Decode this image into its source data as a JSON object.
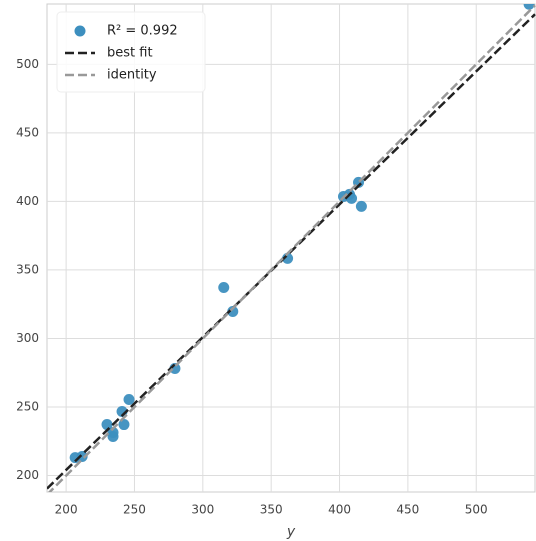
{
  "chart_data": {
    "type": "scatter",
    "xlabel": "y",
    "xlim": [
      186,
      543
    ],
    "ylim": [
      188,
      544
    ],
    "xticks": [
      200,
      250,
      300,
      350,
      400,
      450,
      500
    ],
    "yticks": [
      200,
      250,
      300,
      350,
      400,
      450,
      500
    ],
    "grid": true,
    "legend": "upper left",
    "series": [
      {
        "name": "R² = 0.992",
        "type": "scatter",
        "color": "#3d8fbf",
        "x": [
          206.6,
          211.7,
          229.9,
          234.3,
          234.3,
          240.9,
          242.3,
          246,
          279.6,
          315.3,
          321.9,
          362,
          402.9,
          407.3,
          408.8,
          413.9,
          416,
          538.7
        ],
        "y": [
          213.1,
          213.9,
          237.2,
          228.5,
          231.4,
          246.7,
          237.2,
          255.5,
          278.1,
          337.2,
          319.7,
          358.4,
          403.6,
          405.1,
          402.2,
          413.9,
          396.4,
          543.8
        ]
      },
      {
        "name": "best fit",
        "type": "line",
        "color": "#222222",
        "x": [
          186,
          543
        ],
        "y": [
          190.5,
          536.5
        ]
      },
      {
        "name": "identity",
        "type": "line",
        "color": "#999999",
        "x": [
          186,
          543
        ],
        "y": [
          186,
          543
        ]
      }
    ]
  }
}
